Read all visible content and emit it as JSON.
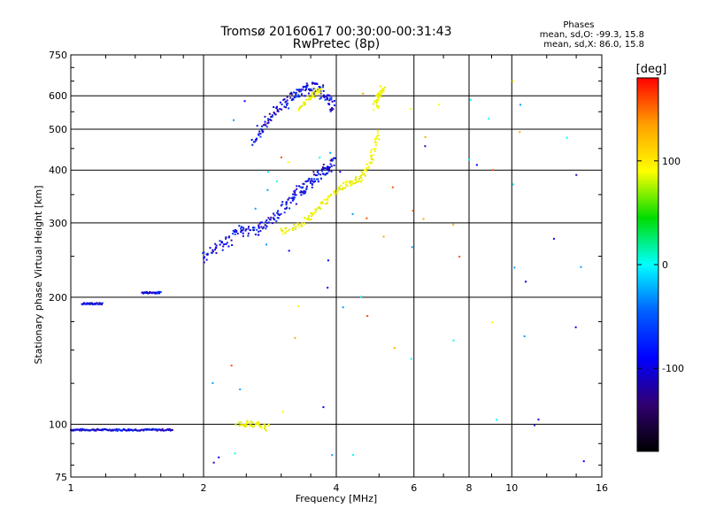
{
  "header": {
    "title_line1": "Tromsø 20160617 00:30:00-00:31:43",
    "title_line2": "RwPretec (8p)"
  },
  "phase_box": {
    "title": "Phases",
    "line_o": "mean, sd,O: -99.3, 15.8",
    "line_x": "mean, sd,X:  86.0, 15.8"
  },
  "colorbar": {
    "unit_label": "[deg]",
    "tick_labels": [
      "100",
      "0",
      "-100"
    ],
    "ticks": [
      100,
      0,
      -100
    ],
    "range": [
      -180,
      180
    ],
    "colors": [
      "#ff0000",
      "#ffa000",
      "#ffff00",
      "#00dd00",
      "#00ffff",
      "#0060ff",
      "#0000ff",
      "#300070",
      "#000000"
    ]
  },
  "chart_data": {
    "type": "scatter",
    "title": "Tromsø 20160617 00:30:00-00:31:43",
    "subtitle": "RwPretec (8p)",
    "xlabel": "Frequency [MHz]",
    "ylabel": "Stationary phase Virtual Height [km]",
    "xscale": "log",
    "yscale": "log",
    "xlim": [
      1,
      16
    ],
    "ylim": [
      75,
      750
    ],
    "xticks": [
      1,
      2,
      4,
      6,
      8,
      10,
      16
    ],
    "xtick_labels": [
      "1",
      "2",
      "4",
      "6",
      "8",
      "10",
      "16"
    ],
    "yticks": [
      75,
      100,
      200,
      300,
      400,
      500,
      600,
      750
    ],
    "ytick_labels": [
      "75",
      "100",
      "200",
      "300",
      "400",
      "500",
      "600",
      "750"
    ],
    "grid": true,
    "color_encoding": "phase [deg]",
    "traces": [
      {
        "mode": "O",
        "x_range": [
          1.0,
          1.7
        ],
        "height": 97
      },
      {
        "mode": "O",
        "x_range": [
          1.06,
          1.18
        ],
        "height": 193
      },
      {
        "mode": "O",
        "x_range": [
          1.45,
          1.6
        ],
        "height": 205
      },
      {
        "mode": "O",
        "x": [
          2.0,
          2.2,
          2.4,
          2.6,
          2.8,
          3.0,
          3.2,
          3.4,
          3.6,
          3.8,
          3.95
        ],
        "y": [
          250,
          265,
          290,
          285,
          300,
          320,
          345,
          365,
          385,
          400,
          420
        ]
      },
      {
        "mode": "O",
        "x": [
          2.6,
          2.8,
          3.0,
          3.2,
          3.4,
          3.6,
          3.8,
          3.95
        ],
        "y": [
          470,
          520,
          570,
          600,
          620,
          630,
          600,
          560
        ]
      },
      {
        "mode": "X",
        "x": [
          2.4,
          2.6,
          2.8
        ],
        "y": [
          100,
          100,
          98
        ]
      },
      {
        "mode": "X",
        "x": [
          3.0,
          3.3,
          3.6,
          3.9,
          4.2,
          4.5,
          4.8,
          5.0
        ],
        "y": [
          285,
          295,
          320,
          350,
          370,
          380,
          420,
          500
        ]
      },
      {
        "mode": "X",
        "x": [
          3.3,
          3.5,
          3.7
        ],
        "y": [
          560,
          600,
          620
        ]
      },
      {
        "mode": "X",
        "x": [
          4.9,
          5.0,
          5.1
        ],
        "y": [
          560,
          600,
          630
        ]
      }
    ]
  }
}
